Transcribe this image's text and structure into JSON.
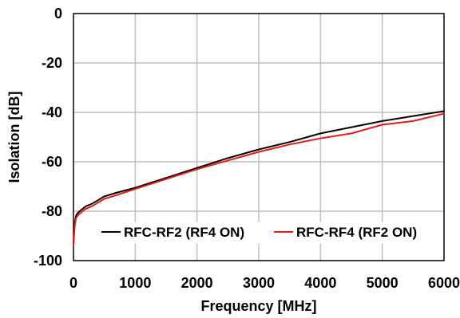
{
  "chart_data": {
    "type": "line",
    "title": "",
    "xlabel": "Frequency [MHz]",
    "ylabel": "Isolation [dB]",
    "xlim": [
      0,
      6000
    ],
    "ylim": [
      -100,
      0
    ],
    "xticks": [
      0,
      1000,
      2000,
      3000,
      4000,
      5000,
      6000
    ],
    "yticks": [
      0,
      -20,
      -40,
      -60,
      -80,
      -100
    ],
    "grid": true,
    "legend_placement": "bottom",
    "series": [
      {
        "name": "RFC-RF2 (RF4 ON)",
        "color": "#000000",
        "x": [
          0,
          10,
          20,
          40,
          60,
          100,
          200,
          300,
          400,
          500,
          700,
          1000,
          1500,
          2000,
          2500,
          3000,
          3500,
          4000,
          4500,
          5000,
          5500,
          6000
        ],
        "y": [
          -93,
          -89,
          -85,
          -82,
          -81,
          -80,
          -78,
          -77,
          -75.5,
          -74,
          -72.5,
          -70.5,
          -66.5,
          -62.5,
          -58.5,
          -55,
          -52,
          -48.5,
          -46,
          -43.5,
          -41.5,
          -39.5
        ]
      },
      {
        "name": "RFC-RF4 (RF2 ON)",
        "color": "#e31a1c",
        "x": [
          0,
          10,
          20,
          40,
          60,
          100,
          200,
          300,
          400,
          500,
          700,
          1000,
          1500,
          2000,
          2500,
          3000,
          3500,
          4000,
          4500,
          5000,
          5500,
          6000
        ],
        "y": [
          -94,
          -90,
          -86,
          -83,
          -82,
          -81,
          -79,
          -78,
          -76.5,
          -75,
          -73.5,
          -71,
          -67,
          -63,
          -59.5,
          -56,
          -53,
          -50.5,
          -48.5,
          -45,
          -43.5,
          -40.5
        ]
      }
    ]
  }
}
